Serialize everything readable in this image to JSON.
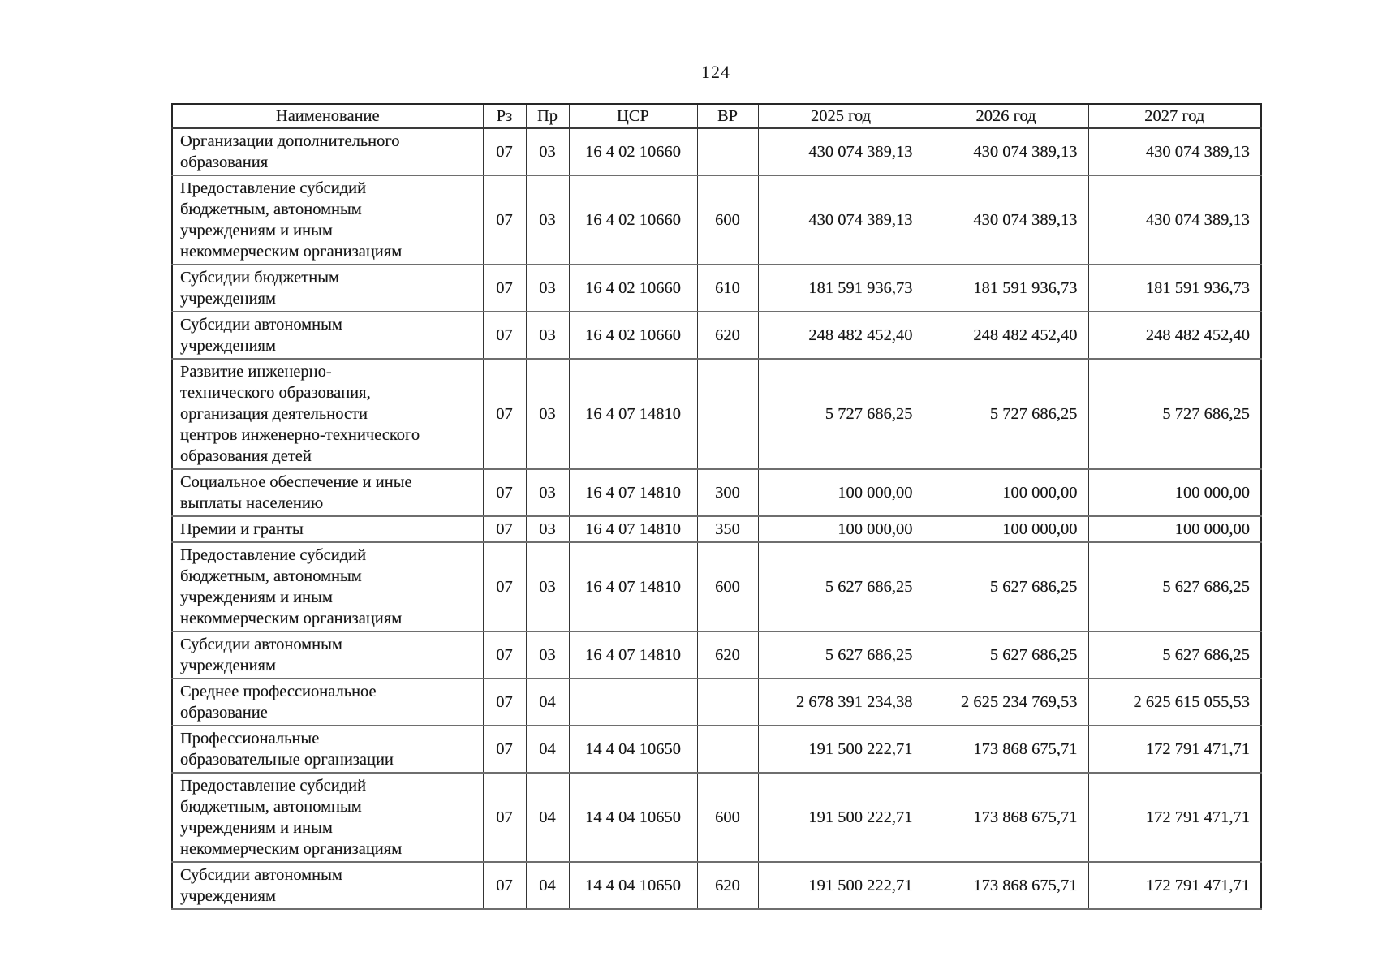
{
  "page": {
    "number": "124"
  },
  "table": {
    "headers": {
      "name": "Наименование",
      "rz": "Рз",
      "pr": "Пр",
      "csr": "ЦСР",
      "vr": "ВР",
      "y2025": "2025 год",
      "y2026": "2026 год",
      "y2027": "2027 год"
    },
    "rows": [
      {
        "name": "Организации дополнительного\nобразования",
        "rz": "07",
        "pr": "03",
        "csr": "16 4 02 10660",
        "vr": "",
        "y2025": "430 074 389,13",
        "y2026": "430 074 389,13",
        "y2027": "430 074 389,13"
      },
      {
        "name": "Предоставление субсидий\nбюджетным, автономным\nучреждениям и иным\nнекоммерческим организациям",
        "rz": "07",
        "pr": "03",
        "csr": "16 4 02 10660",
        "vr": "600",
        "y2025": "430 074 389,13",
        "y2026": "430 074 389,13",
        "y2027": "430 074 389,13"
      },
      {
        "name": "Субсидии бюджетным\nучреждениям",
        "rz": "07",
        "pr": "03",
        "csr": "16 4 02 10660",
        "vr": "610",
        "y2025": "181 591 936,73",
        "y2026": "181 591 936,73",
        "y2027": "181 591 936,73"
      },
      {
        "name": "Субсидии автономным\nучреждениям",
        "rz": "07",
        "pr": "03",
        "csr": "16 4 02 10660",
        "vr": "620",
        "y2025": "248 482 452,40",
        "y2026": "248 482 452,40",
        "y2027": "248 482 452,40"
      },
      {
        "name": "Развитие инженерно-\nтехнического образования,\nорганизация деятельности\nцентров инженерно-технического\nобразования детей",
        "rz": "07",
        "pr": "03",
        "csr": "16 4 07 14810",
        "vr": "",
        "y2025": "5 727 686,25",
        "y2026": "5 727 686,25",
        "y2027": "5 727 686,25"
      },
      {
        "name": "Социальное обеспечение и иные\nвыплаты населению",
        "rz": "07",
        "pr": "03",
        "csr": "16 4 07 14810",
        "vr": "300",
        "y2025": "100 000,00",
        "y2026": "100 000,00",
        "y2027": "100 000,00"
      },
      {
        "name": "Премии и гранты",
        "rz": "07",
        "pr": "03",
        "csr": "16 4 07 14810",
        "vr": "350",
        "y2025": "100 000,00",
        "y2026": "100 000,00",
        "y2027": "100 000,00"
      },
      {
        "name": "Предоставление субсидий\nбюджетным, автономным\nучреждениям и иным\nнекоммерческим организациям",
        "rz": "07",
        "pr": "03",
        "csr": "16 4 07 14810",
        "vr": "600",
        "y2025": "5 627 686,25",
        "y2026": "5 627 686,25",
        "y2027": "5 627 686,25"
      },
      {
        "name": "Субсидии автономным\nучреждениям",
        "rz": "07",
        "pr": "03",
        "csr": "16 4 07 14810",
        "vr": "620",
        "y2025": "5 627 686,25",
        "y2026": "5 627 686,25",
        "y2027": "5 627 686,25"
      },
      {
        "name": "Среднее профессиональное\nобразование",
        "rz": "07",
        "pr": "04",
        "csr": "",
        "vr": "",
        "y2025": "2 678 391 234,38",
        "y2026": "2 625 234 769,53",
        "y2027": "2 625 615 055,53"
      },
      {
        "name": "Профессиональные\nобразовательные организации",
        "rz": "07",
        "pr": "04",
        "csr": "14 4 04 10650",
        "vr": "",
        "y2025": "191 500 222,71",
        "y2026": "173 868 675,71",
        "y2027": "172 791 471,71"
      },
      {
        "name": "Предоставление субсидий\nбюджетным, автономным\nучреждениям и иным\nнекоммерческим организациям",
        "rz": "07",
        "pr": "04",
        "csr": "14 4 04 10650",
        "vr": "600",
        "y2025": "191 500 222,71",
        "y2026": "173 868 675,71",
        "y2027": "172 791 471,71"
      },
      {
        "name": "Субсидии автономным\nучреждениям",
        "rz": "07",
        "pr": "04",
        "csr": "14 4 04 10650",
        "vr": "620",
        "y2025": "191 500 222,71",
        "y2026": "173 868 675,71",
        "y2027": "172 791 471,71"
      }
    ]
  }
}
